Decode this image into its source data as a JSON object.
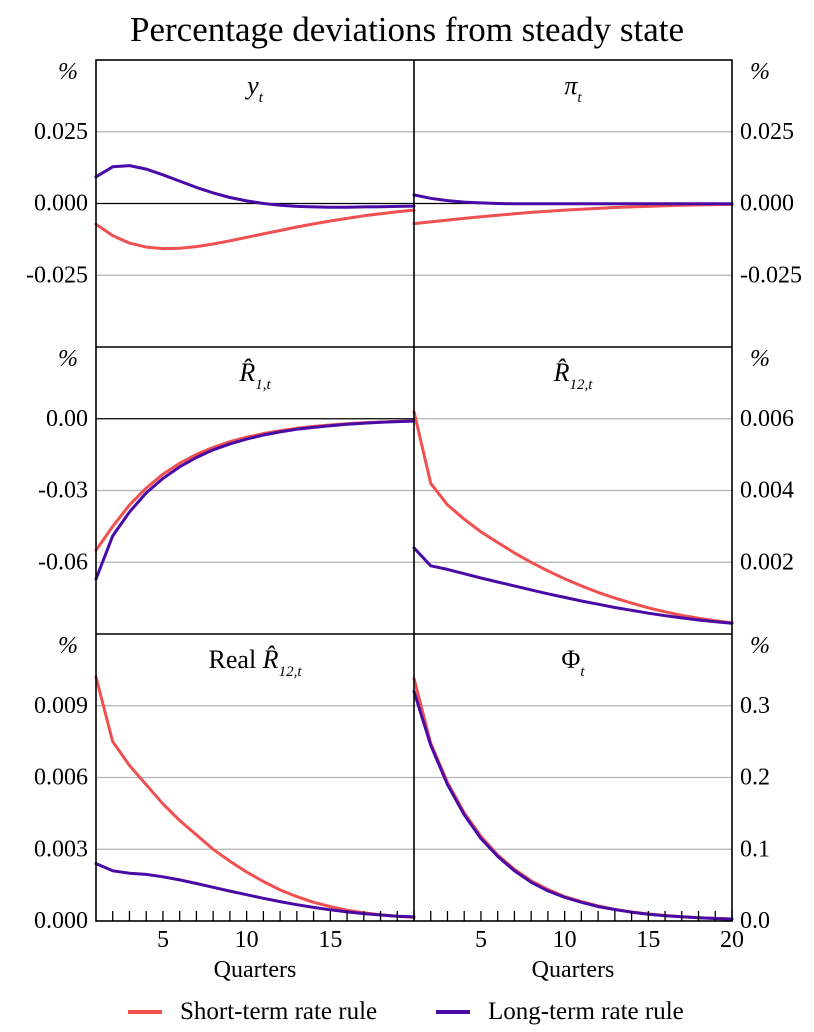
{
  "title": "Percentage deviations from steady state",
  "colors": {
    "short": "#f0504f",
    "long": "#4a0aa6",
    "grid": "#b3b3b3",
    "axis": "#000000"
  },
  "legend": {
    "short_label": "Short-term rate rule",
    "long_label": "Long-term rate rule"
  },
  "x_axis": {
    "label": "Quarters",
    "ticks": [
      5,
      10,
      15,
      20
    ],
    "range": [
      1,
      20
    ]
  },
  "chart_data": [
    {
      "type": "line",
      "panel": "y_t",
      "title_main": "y",
      "title_sub": "t",
      "unit": "%",
      "axis_side": "left",
      "ylim": [
        -0.05,
        0.05
      ],
      "yticks": [
        0.025,
        0.0,
        -0.025
      ],
      "ytick_labels": [
        "0.025",
        "0.000",
        "-0.025"
      ],
      "x": [
        1,
        2,
        3,
        4,
        5,
        6,
        7,
        8,
        9,
        10,
        11,
        12,
        13,
        14,
        15,
        16,
        17,
        18,
        19,
        20
      ],
      "series": [
        {
          "key": "short",
          "values": [
            -0.0072,
            -0.0112,
            -0.0138,
            -0.0152,
            -0.0157,
            -0.0156,
            -0.015,
            -0.0141,
            -0.013,
            -0.0118,
            -0.0106,
            -0.0094,
            -0.0082,
            -0.0071,
            -0.0061,
            -0.0052,
            -0.0043,
            -0.0036,
            -0.0029,
            -0.0023
          ]
        },
        {
          "key": "long",
          "values": [
            0.0093,
            0.0128,
            0.0132,
            0.012,
            0.01,
            0.0078,
            0.0056,
            0.0037,
            0.0021,
            0.0009,
            0.0,
            -0.0006,
            -0.001,
            -0.0012,
            -0.0013,
            -0.0013,
            -0.0012,
            -0.0011,
            -0.001,
            -0.0009
          ]
        }
      ]
    },
    {
      "type": "line",
      "panel": "pi_t",
      "title_main": "π",
      "title_sub": "t",
      "unit": "%",
      "axis_side": "right",
      "ylim": [
        -0.05,
        0.05
      ],
      "yticks": [
        0.025,
        0.0,
        -0.025
      ],
      "ytick_labels": [
        "0.025",
        "0.000",
        "-0.025"
      ],
      "x": [
        1,
        2,
        3,
        4,
        5,
        6,
        7,
        8,
        9,
        10,
        11,
        12,
        13,
        14,
        15,
        16,
        17,
        18,
        19,
        20
      ],
      "series": [
        {
          "key": "short",
          "values": [
            -0.007,
            -0.0064,
            -0.0058,
            -0.0052,
            -0.0046,
            -0.0041,
            -0.0036,
            -0.0031,
            -0.0027,
            -0.0023,
            -0.002,
            -0.0017,
            -0.0014,
            -0.0012,
            -0.001,
            -0.0008,
            -0.0006,
            -0.0005,
            -0.0004,
            -0.0003
          ]
        },
        {
          "key": "long",
          "values": [
            0.003,
            0.0018,
            0.001,
            0.0005,
            0.0002,
            0.0,
            -0.0001,
            -0.0001,
            -0.0001,
            -0.0001,
            -0.0001,
            -0.0001,
            -0.0001,
            -0.0001,
            -0.0001,
            -0.0001,
            -0.0001,
            -0.0001,
            -0.0001,
            -0.0001
          ]
        }
      ]
    },
    {
      "type": "line",
      "panel": "R1_t",
      "title_main": "R̂",
      "title_sub": "1,t",
      "unit": "%",
      "axis_side": "left",
      "ylim": [
        -0.09,
        0.03
      ],
      "yticks": [
        0.0,
        -0.03,
        -0.06
      ],
      "ytick_labels": [
        "0.00",
        "-0.03",
        "-0.06"
      ],
      "x": [
        1,
        2,
        3,
        4,
        5,
        6,
        7,
        8,
        9,
        10,
        11,
        12,
        13,
        14,
        15,
        16,
        17,
        18,
        19,
        20
      ],
      "series": [
        {
          "key": "short",
          "values": [
            -0.055,
            -0.045,
            -0.036,
            -0.029,
            -0.0232,
            -0.0186,
            -0.0149,
            -0.012,
            -0.0096,
            -0.0077,
            -0.0062,
            -0.005,
            -0.004,
            -0.0032,
            -0.0026,
            -0.0021,
            -0.0017,
            -0.0014,
            -0.0011,
            -0.0009
          ]
        },
        {
          "key": "long",
          "values": [
            -0.067,
            -0.049,
            -0.039,
            -0.031,
            -0.025,
            -0.0201,
            -0.0162,
            -0.013,
            -0.0105,
            -0.0085,
            -0.0068,
            -0.0055,
            -0.0044,
            -0.0036,
            -0.0029,
            -0.0023,
            -0.0019,
            -0.0015,
            -0.0012,
            -0.001
          ]
        }
      ]
    },
    {
      "type": "line",
      "panel": "R12_t",
      "title_main": "R̂",
      "title_sub": "12,t",
      "unit": "%",
      "axis_side": "right",
      "ylim": [
        0.0,
        0.008
      ],
      "yticks": [
        0.006,
        0.004,
        0.002
      ],
      "ytick_labels": [
        "0.006",
        "0.004",
        "0.002"
      ],
      "x": [
        1,
        2,
        3,
        4,
        5,
        6,
        7,
        8,
        9,
        10,
        11,
        12,
        13,
        14,
        15,
        16,
        17,
        18,
        19,
        20
      ],
      "series": [
        {
          "key": "short",
          "values": [
            0.0062,
            0.0042,
            0.0036,
            0.0032,
            0.00285,
            0.00255,
            0.00226,
            0.002,
            0.00176,
            0.00154,
            0.00134,
            0.00116,
            0.001,
            0.00086,
            0.00073,
            0.00062,
            0.00052,
            0.00044,
            0.00037,
            0.00031
          ]
        },
        {
          "key": "long",
          "values": [
            0.0024,
            0.0019,
            0.0018,
            0.00168,
            0.00156,
            0.00145,
            0.00134,
            0.00123,
            0.00112,
            0.00102,
            0.00092,
            0.00083,
            0.00074,
            0.00066,
            0.00058,
            0.00051,
            0.00045,
            0.00039,
            0.00034,
            0.0003
          ]
        }
      ]
    },
    {
      "type": "line",
      "panel": "real_R12_t",
      "title_prefix": "Real",
      "title_main": "R̂",
      "title_sub": "12,t",
      "unit": "%",
      "axis_side": "left",
      "ylim": [
        0.0,
        0.012
      ],
      "yticks": [
        0.009,
        0.006,
        0.003,
        0.0
      ],
      "ytick_labels": [
        "0.009",
        "0.006",
        "0.003",
        "0.000"
      ],
      "x_ticks_labeled": [
        5,
        10,
        15
      ],
      "x": [
        1,
        2,
        3,
        4,
        5,
        6,
        7,
        8,
        9,
        10,
        11,
        12,
        13,
        14,
        15,
        16,
        17,
        18,
        19,
        20
      ],
      "series": [
        {
          "key": "short",
          "values": [
            0.0102,
            0.0075,
            0.0065,
            0.0057,
            0.0049,
            0.0042,
            0.0036,
            0.003,
            0.0025,
            0.00205,
            0.00165,
            0.0013,
            0.00102,
            0.00078,
            0.0006,
            0.00045,
            0.00034,
            0.00026,
            0.0002,
            0.00016
          ]
        },
        {
          "key": "long",
          "values": [
            0.0024,
            0.0021,
            0.002,
            0.00195,
            0.00185,
            0.00172,
            0.00157,
            0.00141,
            0.00125,
            0.0011,
            0.00095,
            0.00081,
            0.00068,
            0.00057,
            0.00047,
            0.00038,
            0.00031,
            0.00025,
            0.0002,
            0.00017
          ]
        }
      ]
    },
    {
      "type": "line",
      "panel": "Phi_t",
      "title_main": "Φ",
      "title_sub": "t",
      "unit": "%",
      "axis_side": "right",
      "ylim": [
        0.0,
        0.4
      ],
      "yticks": [
        0.3,
        0.2,
        0.1,
        0.0
      ],
      "ytick_labels": [
        "0.3",
        "0.2",
        "0.1",
        "0.0"
      ],
      "x_ticks_labeled": [
        5,
        10,
        15,
        20
      ],
      "x": [
        1,
        2,
        3,
        4,
        5,
        6,
        7,
        8,
        9,
        10,
        11,
        12,
        13,
        14,
        15,
        16,
        17,
        18,
        19,
        20
      ],
      "series": [
        {
          "key": "short",
          "values": [
            0.338,
            0.248,
            0.193,
            0.151,
            0.118,
            0.092,
            0.072,
            0.056,
            0.044,
            0.034,
            0.027,
            0.021,
            0.016,
            0.0125,
            0.0097,
            0.0076,
            0.0059,
            0.0046,
            0.0036,
            0.0028
          ]
        },
        {
          "key": "long",
          "values": [
            0.32,
            0.245,
            0.19,
            0.148,
            0.115,
            0.09,
            0.07,
            0.054,
            0.042,
            0.033,
            0.026,
            0.02,
            0.016,
            0.0122,
            0.0095,
            0.0074,
            0.0058,
            0.0045,
            0.0035,
            0.0027
          ]
        }
      ]
    }
  ]
}
